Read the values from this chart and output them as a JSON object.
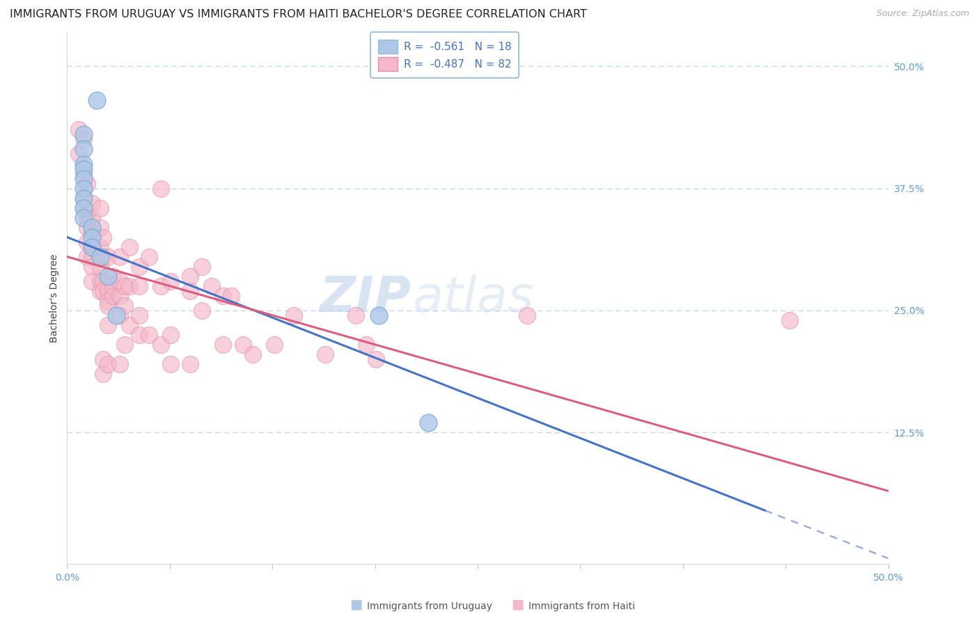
{
  "title": "IMMIGRANTS FROM URUGUAY VS IMMIGRANTS FROM HAITI BACHELOR'S DEGREE CORRELATION CHART",
  "source": "Source: ZipAtlas.com",
  "ylabel": "Bachelor's Degree",
  "ytick_labels": [
    "50.0%",
    "37.5%",
    "25.0%",
    "12.5%"
  ],
  "ytick_values": [
    0.5,
    0.375,
    0.25,
    0.125
  ],
  "xtick_values": [
    0.0,
    0.0625,
    0.125,
    0.1875,
    0.25,
    0.3125,
    0.375,
    0.4375,
    0.5
  ],
  "xlim": [
    0.0,
    0.5
  ],
  "ylim": [
    -0.01,
    0.535
  ],
  "legend_entry1": "R =  -0.561   N = 18",
  "legend_entry2": "R =  -0.487   N = 82",
  "legend_label1": "Immigrants from Uruguay",
  "legend_label2": "Immigrants from Haiti",
  "color_uruguay": "#aec6e8",
  "color_haiti": "#f4b8c8",
  "edge_uruguay": "#7aaad0",
  "edge_haiti": "#e090a8",
  "line_color_uruguay": "#4472c4",
  "line_color_haiti": "#d95f7f",
  "background_color": "#ffffff",
  "grid_color": "#c0d4e8",
  "watermark_zip": "ZIP",
  "watermark_atlas": "atlas",
  "uruguay_trendline": [
    [
      0.0,
      0.325
    ],
    [
      0.425,
      0.045
    ]
  ],
  "uruguay_trendline_dashed": [
    [
      0.425,
      0.045
    ],
    [
      0.5,
      -0.004
    ]
  ],
  "haiti_trendline": [
    [
      0.0,
      0.305
    ],
    [
      0.5,
      0.065
    ]
  ],
  "uruguay_points": [
    [
      0.018,
      0.465
    ],
    [
      0.01,
      0.43
    ],
    [
      0.01,
      0.415
    ],
    [
      0.01,
      0.4
    ],
    [
      0.01,
      0.395
    ],
    [
      0.01,
      0.385
    ],
    [
      0.01,
      0.375
    ],
    [
      0.01,
      0.365
    ],
    [
      0.01,
      0.355
    ],
    [
      0.01,
      0.345
    ],
    [
      0.015,
      0.335
    ],
    [
      0.015,
      0.325
    ],
    [
      0.015,
      0.315
    ],
    [
      0.02,
      0.305
    ],
    [
      0.025,
      0.285
    ],
    [
      0.03,
      0.245
    ],
    [
      0.19,
      0.245
    ],
    [
      0.22,
      0.135
    ]
  ],
  "haiti_points": [
    [
      0.007,
      0.435
    ],
    [
      0.007,
      0.41
    ],
    [
      0.01,
      0.425
    ],
    [
      0.01,
      0.39
    ],
    [
      0.01,
      0.365
    ],
    [
      0.01,
      0.355
    ],
    [
      0.012,
      0.38
    ],
    [
      0.012,
      0.35
    ],
    [
      0.012,
      0.345
    ],
    [
      0.012,
      0.335
    ],
    [
      0.012,
      0.32
    ],
    [
      0.012,
      0.305
    ],
    [
      0.015,
      0.36
    ],
    [
      0.015,
      0.345
    ],
    [
      0.015,
      0.33
    ],
    [
      0.015,
      0.315
    ],
    [
      0.015,
      0.305
    ],
    [
      0.015,
      0.295
    ],
    [
      0.015,
      0.28
    ],
    [
      0.02,
      0.355
    ],
    [
      0.02,
      0.335
    ],
    [
      0.02,
      0.315
    ],
    [
      0.02,
      0.295
    ],
    [
      0.02,
      0.28
    ],
    [
      0.02,
      0.27
    ],
    [
      0.022,
      0.325
    ],
    [
      0.022,
      0.305
    ],
    [
      0.022,
      0.28
    ],
    [
      0.022,
      0.27
    ],
    [
      0.022,
      0.2
    ],
    [
      0.022,
      0.185
    ],
    [
      0.025,
      0.305
    ],
    [
      0.025,
      0.27
    ],
    [
      0.025,
      0.26
    ],
    [
      0.025,
      0.255
    ],
    [
      0.025,
      0.235
    ],
    [
      0.025,
      0.195
    ],
    [
      0.028,
      0.285
    ],
    [
      0.028,
      0.275
    ],
    [
      0.028,
      0.265
    ],
    [
      0.032,
      0.305
    ],
    [
      0.032,
      0.28
    ],
    [
      0.032,
      0.265
    ],
    [
      0.032,
      0.245
    ],
    [
      0.032,
      0.195
    ],
    [
      0.035,
      0.275
    ],
    [
      0.035,
      0.255
    ],
    [
      0.035,
      0.215
    ],
    [
      0.038,
      0.315
    ],
    [
      0.038,
      0.275
    ],
    [
      0.038,
      0.235
    ],
    [
      0.044,
      0.295
    ],
    [
      0.044,
      0.275
    ],
    [
      0.044,
      0.245
    ],
    [
      0.044,
      0.225
    ],
    [
      0.05,
      0.305
    ],
    [
      0.05,
      0.225
    ],
    [
      0.057,
      0.375
    ],
    [
      0.057,
      0.275
    ],
    [
      0.057,
      0.215
    ],
    [
      0.063,
      0.28
    ],
    [
      0.063,
      0.225
    ],
    [
      0.063,
      0.195
    ],
    [
      0.075,
      0.285
    ],
    [
      0.075,
      0.27
    ],
    [
      0.075,
      0.195
    ],
    [
      0.082,
      0.295
    ],
    [
      0.082,
      0.25
    ],
    [
      0.088,
      0.275
    ],
    [
      0.095,
      0.265
    ],
    [
      0.095,
      0.215
    ],
    [
      0.1,
      0.265
    ],
    [
      0.107,
      0.215
    ],
    [
      0.113,
      0.205
    ],
    [
      0.126,
      0.215
    ],
    [
      0.138,
      0.245
    ],
    [
      0.157,
      0.205
    ],
    [
      0.176,
      0.245
    ],
    [
      0.182,
      0.215
    ],
    [
      0.188,
      0.2
    ],
    [
      0.28,
      0.245
    ],
    [
      0.44,
      0.24
    ]
  ],
  "title_fontsize": 11.5,
  "source_fontsize": 9,
  "axis_label_fontsize": 10,
  "tick_fontsize": 10,
  "legend_fontsize": 11,
  "watermark_fontsize_zip": 52,
  "watermark_fontsize_atlas": 52
}
